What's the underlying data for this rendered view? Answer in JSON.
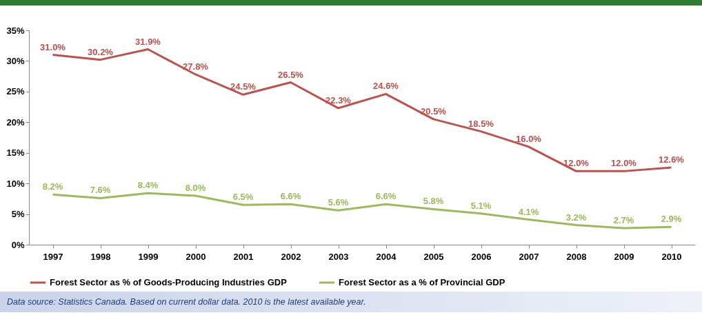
{
  "chart_data": {
    "type": "line",
    "categories": [
      "1997",
      "1998",
      "1999",
      "2000",
      "2001",
      "2002",
      "2003",
      "2004",
      "2005",
      "2006",
      "2007",
      "2008",
      "2009",
      "2010"
    ],
    "series": [
      {
        "name": "Forest Sector as % of Goods-Producing Industries GDP",
        "color": "#c0504d",
        "values": [
          31.0,
          30.2,
          31.9,
          27.8,
          24.5,
          26.5,
          22.3,
          24.6,
          20.5,
          18.5,
          16.0,
          12.0,
          12.0,
          12.6
        ],
        "value_labels": [
          "31.0%",
          "30.2%",
          "31.9%",
          "27.8%",
          "24.5%",
          "26.5%",
          "22.3%",
          "24.6%",
          "20.5%",
          "18.5%",
          "16.0%",
          "12.0%",
          "12.0%",
          "12.6%"
        ]
      },
      {
        "name": "Forest Sector as a % of Provincial GDP",
        "color": "#9bbb59",
        "values": [
          8.2,
          7.6,
          8.4,
          8.0,
          6.5,
          6.6,
          5.6,
          6.6,
          5.8,
          5.1,
          4.1,
          3.2,
          2.7,
          2.9
        ],
        "value_labels": [
          "8.2%",
          "7.6%",
          "8.4%",
          "8.0%",
          "6.5%",
          "6.6%",
          "5.6%",
          "6.6%",
          "5.8%",
          "5.1%",
          "4.1%",
          "3.2%",
          "2.7%",
          "2.9%"
        ]
      }
    ],
    "ylim": [
      0,
      35
    ],
    "yticks": [
      {
        "value": 0,
        "label": "0%"
      },
      {
        "value": 5,
        "label": "5%"
      },
      {
        "value": 10,
        "label": "10%"
      },
      {
        "value": 15,
        "label": "15%"
      },
      {
        "value": 20,
        "label": "20%"
      },
      {
        "value": 25,
        "label": "25%"
      },
      {
        "value": 30,
        "label": "30%"
      },
      {
        "value": 35,
        "label": "35%"
      }
    ],
    "grid": false,
    "legend": "bottom",
    "annotations": [
      "Data source:  Statistics Canada.  Based on current dollar data.  2010 is the latest available year."
    ]
  }
}
